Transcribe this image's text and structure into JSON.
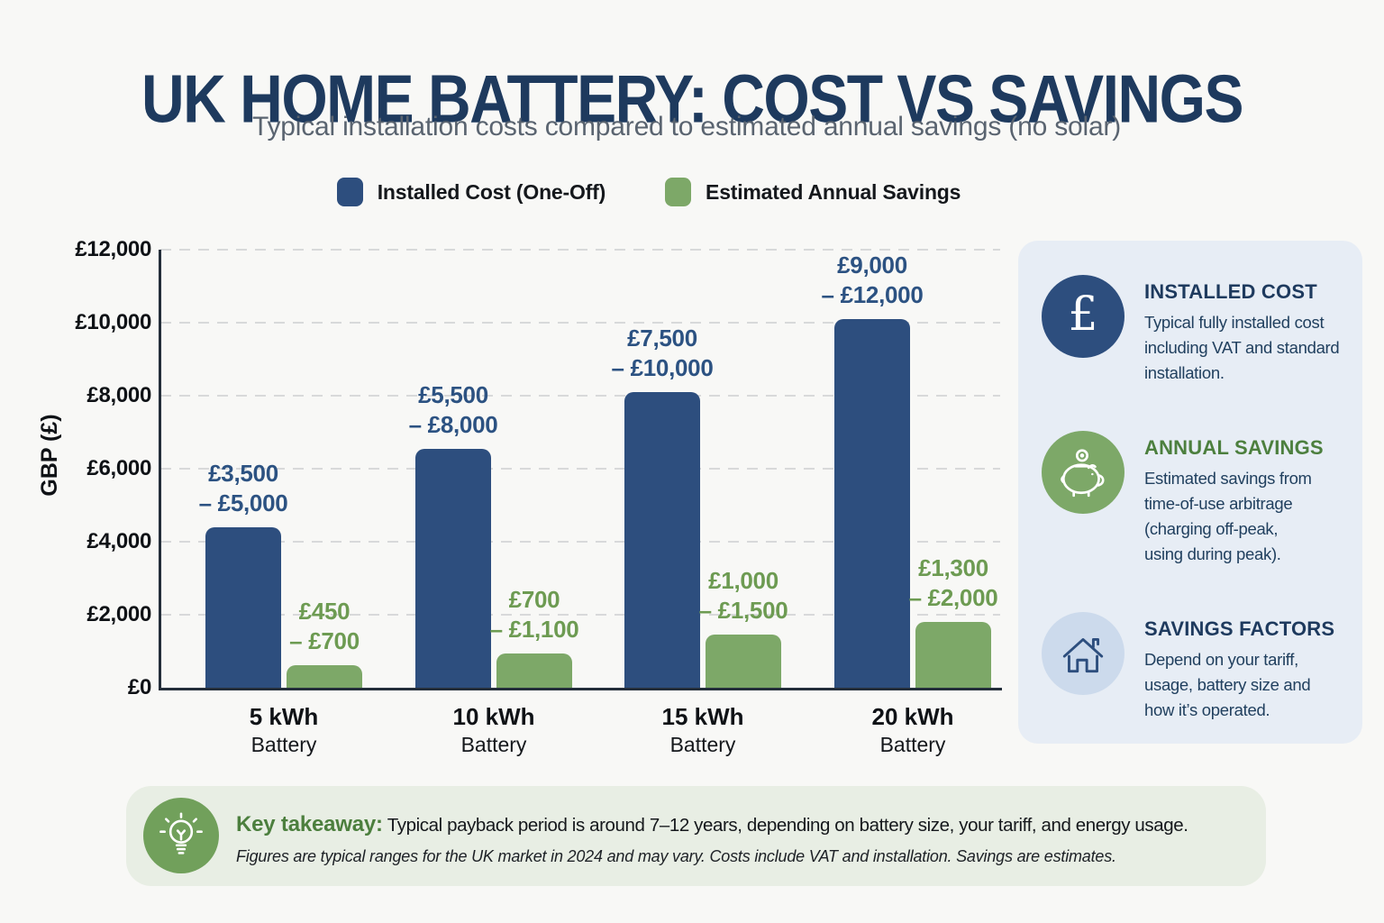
{
  "header": {
    "title": "UK HOME BATTERY: COST VS SAVINGS",
    "subtitle": "Typical installation costs compared to estimated annual savings (no solar)"
  },
  "chart_data": {
    "type": "bar",
    "categories": [
      "5 kWh",
      "10 kWh",
      "15 kWh",
      "20 kWh"
    ],
    "category_subline": "Battery",
    "ylabel": "GBP (£)",
    "ylim": [
      0,
      12000
    ],
    "ytick_step": 2000,
    "ytick_labels": [
      "£0",
      "£2,000",
      "£4,000",
      "£6,000",
      "£8,000",
      "£10,000",
      "£12,000"
    ],
    "grid": "horizontal-dashed",
    "legend_position": "top-center",
    "series": [
      {
        "name": "Installed Cost (One-Off)",
        "color": "#2d4e7e",
        "label_color": "#2c5282",
        "range_low": [
          3500,
          5500,
          7500,
          9000
        ],
        "range_high": [
          5000,
          8000,
          10000,
          12000
        ],
        "plotted_values": [
          4400,
          6550,
          8100,
          10100
        ],
        "range_labels": [
          "£3,500\n– £5,000",
          "£5,500\n– £8,000",
          "£7,500\n– £10,000",
          "£9,000\n– £12,000"
        ]
      },
      {
        "name": "Estimated Annual Savings",
        "color": "#7da868",
        "label_color": "#6d9b52",
        "range_low": [
          450,
          700,
          1000,
          1300
        ],
        "range_high": [
          700,
          1100,
          1500,
          2000
        ],
        "plotted_values": [
          620,
          930,
          1450,
          1800
        ],
        "range_labels": [
          "£450\n– £700",
          "£700\n– £1,100",
          "£1,000\n– £1,500",
          "£1,300\n– £2,000"
        ]
      }
    ]
  },
  "panel": {
    "items": [
      {
        "icon": "pound-icon",
        "heading": "INSTALLED COST",
        "heading_color": "#1e3a5e",
        "circle_color": "#2d4e7e",
        "body": "Typical fully installed cost\nincluding VAT and standard\ninstallation."
      },
      {
        "icon": "piggy-bank-icon",
        "heading": "ANNUAL SAVINGS",
        "heading_color": "#4c7f3e",
        "circle_color": "#7da868",
        "body": "Estimated savings from\ntime-of-use arbitrage\n(charging off-peak,\nusing during peak)."
      },
      {
        "icon": "house-icon",
        "heading": "SAVINGS FACTORS",
        "heading_color": "#1e3a5e",
        "circle_color": "#ccdaec",
        "body": "Depend on your tariff,\nusage, battery size and\nhow it’s operated."
      }
    ]
  },
  "footer": {
    "icon": "lightbulb-icon",
    "label": "Key takeaway:",
    "text": " Typical payback period is around 7–12 years, depending on battery size, your tariff, and energy usage.",
    "note": "Figures are typical ranges for the UK market in 2024 and may vary. Costs include VAT and installation. Savings are estimates.",
    "circle_color": "#71a05b"
  },
  "colors": {
    "navy": "#1e3a5e",
    "bar_blue": "#2d4e7e",
    "bar_green": "#7da868",
    "green_heading": "#4c7f3e",
    "subtitle_gray": "#5a6470",
    "panel_bg": "#e7edf5",
    "footer_bg": "#e8eee4",
    "page_bg": "#f8f8f6",
    "light_blue_circle": "#ccdaec",
    "axis": "#242e3a"
  }
}
